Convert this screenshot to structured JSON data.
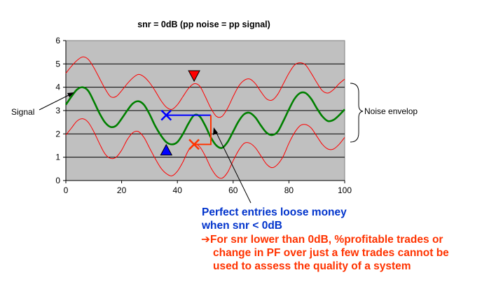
{
  "chart_data": {
    "type": "line",
    "title": "snr = 0dB (pp noise = pp signal)",
    "xlabel": "",
    "ylabel": "",
    "xlim": [
      0,
      100
    ],
    "ylim": [
      0,
      6
    ],
    "x_ticks": [
      0,
      20,
      40,
      60,
      80,
      100
    ],
    "y_ticks": [
      0,
      1,
      2,
      3,
      4,
      5,
      6
    ],
    "grid": "horizontal",
    "plot_background": "#c0c0c0",
    "series": [
      {
        "color": "#ff0000",
        "x": [
          0,
          2,
          4,
          6,
          8,
          10,
          12,
          14,
          16,
          18,
          20,
          22,
          24,
          26,
          28,
          30,
          32,
          34,
          36,
          38,
          40,
          42,
          44,
          46,
          48,
          50,
          52,
          54,
          56,
          58,
          60,
          62,
          64,
          66,
          68,
          70,
          72,
          74,
          76,
          78,
          80,
          82,
          84,
          86,
          88,
          90,
          92,
          94,
          96,
          98,
          100
        ],
        "values": [
          4.6,
          4.9,
          5.15,
          5.3,
          5.2,
          4.85,
          4.4,
          3.95,
          3.6,
          3.6,
          3.85,
          4.15,
          4.4,
          4.55,
          4.45,
          4.2,
          3.85,
          3.45,
          3.15,
          3.05,
          3.25,
          3.6,
          3.95,
          4.15,
          4.05,
          3.6,
          3.1,
          2.75,
          2.75,
          3.1,
          3.6,
          4.05,
          4.3,
          4.35,
          4.15,
          3.8,
          3.5,
          3.45,
          3.7,
          4.15,
          4.6,
          4.95,
          5.05,
          4.95,
          4.6,
          4.2,
          3.85,
          3.75,
          3.9,
          4.15,
          4.35
        ]
      },
      {
        "color": "#008000",
        "x": [
          0,
          2,
          4,
          6,
          8,
          10,
          12,
          14,
          16,
          18,
          20,
          22,
          24,
          26,
          28,
          30,
          32,
          34,
          36,
          38,
          40,
          42,
          44,
          46,
          48,
          50,
          52,
          54,
          56,
          58,
          60,
          62,
          64,
          66,
          68,
          70,
          72,
          74,
          76,
          78,
          80,
          82,
          84,
          86,
          88,
          90,
          92,
          94,
          96,
          98,
          100
        ],
        "values": [
          3.25,
          3.6,
          3.9,
          4.0,
          3.85,
          3.4,
          2.9,
          2.5,
          2.3,
          2.35,
          2.65,
          3.0,
          3.3,
          3.4,
          3.25,
          2.85,
          2.35,
          1.95,
          1.65,
          1.55,
          1.65,
          2.0,
          2.45,
          2.8,
          2.75,
          2.35,
          1.85,
          1.5,
          1.4,
          1.65,
          2.1,
          2.55,
          2.85,
          2.9,
          2.7,
          2.35,
          2.05,
          1.95,
          2.1,
          2.55,
          3.05,
          3.5,
          3.75,
          3.75,
          3.5,
          3.1,
          2.75,
          2.55,
          2.6,
          2.8,
          3.05
        ]
      },
      {
        "color": "#ff0000",
        "x": [
          0,
          2,
          4,
          6,
          8,
          10,
          12,
          14,
          16,
          18,
          20,
          22,
          24,
          26,
          28,
          30,
          32,
          34,
          36,
          38,
          40,
          42,
          44,
          46,
          48,
          50,
          52,
          54,
          56,
          58,
          60,
          62,
          64,
          66,
          68,
          70,
          72,
          74,
          76,
          78,
          80,
          82,
          84,
          86,
          88,
          90,
          92,
          94,
          96,
          98,
          100
        ],
        "values": [
          1.95,
          2.25,
          2.55,
          2.65,
          2.5,
          2.1,
          1.6,
          1.15,
          0.95,
          1.0,
          1.3,
          1.75,
          2.05,
          2.1,
          1.85,
          1.4,
          0.95,
          0.55,
          0.3,
          0.2,
          0.4,
          0.8,
          1.3,
          1.55,
          1.45,
          1.05,
          0.55,
          0.2,
          0.1,
          0.35,
          0.85,
          1.3,
          1.6,
          1.6,
          1.4,
          1.05,
          0.7,
          0.55,
          0.7,
          1.05,
          1.6,
          2.05,
          2.35,
          2.4,
          2.25,
          1.9,
          1.55,
          1.35,
          1.35,
          1.55,
          1.85
        ]
      }
    ],
    "markers": [
      {
        "shape": "triangle-down",
        "color": "#ff0000",
        "x": 46,
        "y": 4.5
      },
      {
        "shape": "cross",
        "color": "#ff3300",
        "x": 46,
        "y": 1.55
      },
      {
        "shape": "triangle-up",
        "color": "#0000ff",
        "x": 36,
        "y": 1.3
      },
      {
        "shape": "cross",
        "color": "#0000ff",
        "x": 36,
        "y": 2.8
      }
    ],
    "trade_path": [
      [
        36,
        2.8
      ],
      [
        52,
        2.8
      ],
      [
        52,
        1.55
      ],
      [
        46,
        1.55
      ]
    ],
    "annotations": {
      "signal_label": "Signal",
      "noise_label": "Noise envelop"
    }
  },
  "text": {
    "blue_line_1": "Perfect entries loose money",
    "blue_line_2": "when snr < 0dB",
    "red_arrow": "➔",
    "red_line_1": "For snr lower than 0dB, %profitable trades or",
    "red_line_2": "change in PF over just a few trades cannot be",
    "red_line_3": "used to assess the quality of a system"
  },
  "colors": {
    "blue_text": "#0033cc",
    "red_text": "#ff3300"
  }
}
